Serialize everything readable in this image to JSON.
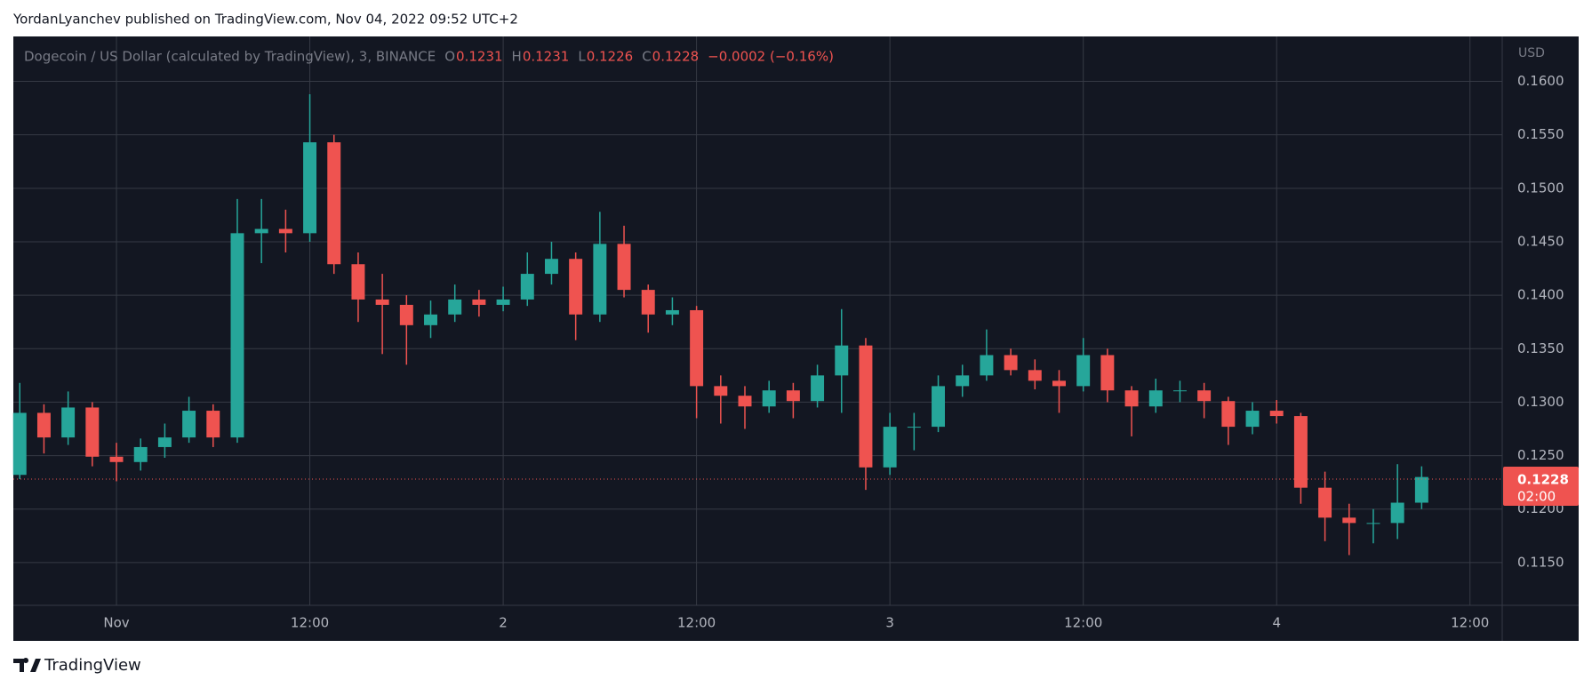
{
  "header": "YordanLyanchev published on TradingView.com, Nov 04, 2022 09:52 UTC+2",
  "footer": "TradingView",
  "chart_data": {
    "type": "candlestick",
    "symbol": "Dogecoin / US Dollar (calculated by TradingView), 3, BINANCE",
    "ohlc": [
      {
        "label": "O",
        "value": 0.1231
      },
      {
        "label": "H",
        "value": 0.1231
      },
      {
        "label": "L",
        "value": 0.1226
      },
      {
        "label": "C",
        "value": 0.1228
      }
    ],
    "change": "−0.0002 (−0.16%)",
    "currency": "USD",
    "last_price": 0.1228,
    "countdown": "02:00",
    "up_color": "#26a69a",
    "down_color": "#ef5350",
    "grid": true,
    "xlim": [
      -6.4,
      86
    ],
    "xticks": [
      {
        "value": 0,
        "label": "Nov"
      },
      {
        "value": 12,
        "label": "12:00"
      },
      {
        "value": 24,
        "label": "2"
      },
      {
        "value": 36,
        "label": "12:00"
      },
      {
        "value": 48,
        "label": "3"
      },
      {
        "value": 60,
        "label": "12:00"
      },
      {
        "value": 72,
        "label": "4"
      },
      {
        "value": 84,
        "label": "12:00"
      }
    ],
    "ylim": [
      0.111,
      0.1642
    ],
    "yticks": [
      {
        "value": 0.115,
        "label": "0.1150"
      },
      {
        "value": 0.12,
        "label": "0.1200"
      },
      {
        "value": 0.125,
        "label": "0.1250"
      },
      {
        "value": 0.13,
        "label": "0.1300"
      },
      {
        "value": 0.135,
        "label": "0.1350"
      },
      {
        "value": 0.14,
        "label": "0.1400"
      },
      {
        "value": 0.145,
        "label": "0.1450"
      },
      {
        "value": 0.15,
        "label": "0.1500"
      },
      {
        "value": 0.155,
        "label": "0.1550"
      },
      {
        "value": 0.16,
        "label": "0.1600"
      }
    ],
    "x": [
      -6,
      -4.5,
      -3,
      -1.5,
      0,
      1.5,
      3,
      4.5,
      6,
      7.5,
      9,
      10.5,
      12,
      13.5,
      15,
      16.5,
      18,
      19.5,
      21,
      22.5,
      24,
      25.5,
      27,
      28.5,
      30,
      31.5,
      33,
      34.5,
      36,
      37.5,
      39,
      40.5,
      42,
      43.5,
      45,
      46.5,
      48,
      49.5,
      51,
      52.5,
      54,
      55.5,
      57,
      58.5,
      60,
      61.5,
      63,
      64.5,
      66,
      67.5,
      69,
      70.5,
      72,
      73.5,
      75,
      76.5,
      78,
      79.5,
      81
    ],
    "open": [
      0.1232,
      0.129,
      0.1267,
      0.1295,
      0.1249,
      0.1244,
      0.1258,
      0.1267,
      0.1292,
      0.1267,
      0.1458,
      0.1462,
      0.1458,
      0.1543,
      0.1429,
      0.1396,
      0.1391,
      0.1372,
      0.1382,
      0.1396,
      0.1391,
      0.1396,
      0.142,
      0.1434,
      0.1382,
      0.1448,
      0.1405,
      0.1382,
      0.1386,
      0.1315,
      0.1306,
      0.1296,
      0.1311,
      0.1301,
      0.1325,
      0.1353,
      0.1239,
      0.1277,
      0.1277,
      0.1315,
      0.1325,
      0.1344,
      0.133,
      0.132,
      0.1315,
      0.1344,
      0.1311,
      0.1296,
      0.1311,
      0.1311,
      0.1301,
      0.1277,
      0.1292,
      0.1287,
      0.122,
      0.1192,
      0.1187,
      0.1187,
      0.1206
    ],
    "high": [
      0.1318,
      0.1298,
      0.131,
      0.13,
      0.1262,
      0.1266,
      0.128,
      0.1305,
      0.1298,
      0.149,
      0.149,
      0.148,
      0.1588,
      0.155,
      0.144,
      0.142,
      0.14,
      0.1395,
      0.141,
      0.1405,
      0.1408,
      0.144,
      0.145,
      0.144,
      0.1478,
      0.1465,
      0.141,
      0.1398,
      0.139,
      0.1325,
      0.1315,
      0.132,
      0.1318,
      0.1335,
      0.1387,
      0.136,
      0.129,
      0.129,
      0.1325,
      0.1335,
      0.1368,
      0.135,
      0.134,
      0.133,
      0.136,
      0.135,
      0.1315,
      0.1322,
      0.132,
      0.1318,
      0.1305,
      0.13,
      0.1302,
      0.129,
      0.1235,
      0.1205,
      0.12,
      0.1242,
      0.124
    ],
    "low": [
      0.1228,
      0.1252,
      0.126,
      0.124,
      0.1226,
      0.1236,
      0.1248,
      0.1262,
      0.1258,
      0.1262,
      0.143,
      0.144,
      0.145,
      0.142,
      0.1375,
      0.1345,
      0.1335,
      0.136,
      0.1375,
      0.138,
      0.1385,
      0.139,
      0.141,
      0.1358,
      0.1375,
      0.1398,
      0.1365,
      0.1372,
      0.1285,
      0.128,
      0.1275,
      0.129,
      0.1285,
      0.1295,
      0.129,
      0.1218,
      0.1232,
      0.1255,
      0.1272,
      0.1305,
      0.132,
      0.1325,
      0.1312,
      0.129,
      0.131,
      0.13,
      0.1268,
      0.129,
      0.13,
      0.1285,
      0.126,
      0.127,
      0.128,
      0.1205,
      0.117,
      0.1157,
      0.1168,
      0.1172,
      0.12
    ],
    "close": [
      0.129,
      0.1267,
      0.1295,
      0.1249,
      0.1244,
      0.1258,
      0.1267,
      0.1292,
      0.1267,
      0.1458,
      0.1462,
      0.1458,
      0.1543,
      0.1429,
      0.1396,
      0.1391,
      0.1372,
      0.1382,
      0.1396,
      0.1391,
      0.1396,
      0.142,
      0.1434,
      0.1382,
      0.1448,
      0.1405,
      0.1382,
      0.1386,
      0.1315,
      0.1306,
      0.1296,
      0.1311,
      0.1301,
      0.1325,
      0.1353,
      0.1239,
      0.1277,
      0.1277,
      0.1315,
      0.1325,
      0.1344,
      0.133,
      0.132,
      0.1315,
      0.1344,
      0.1311,
      0.1296,
      0.1311,
      0.1311,
      0.1301,
      0.1277,
      0.1292,
      0.1287,
      0.122,
      0.1192,
      0.1187,
      0.1187,
      0.1206,
      0.123
    ]
  }
}
